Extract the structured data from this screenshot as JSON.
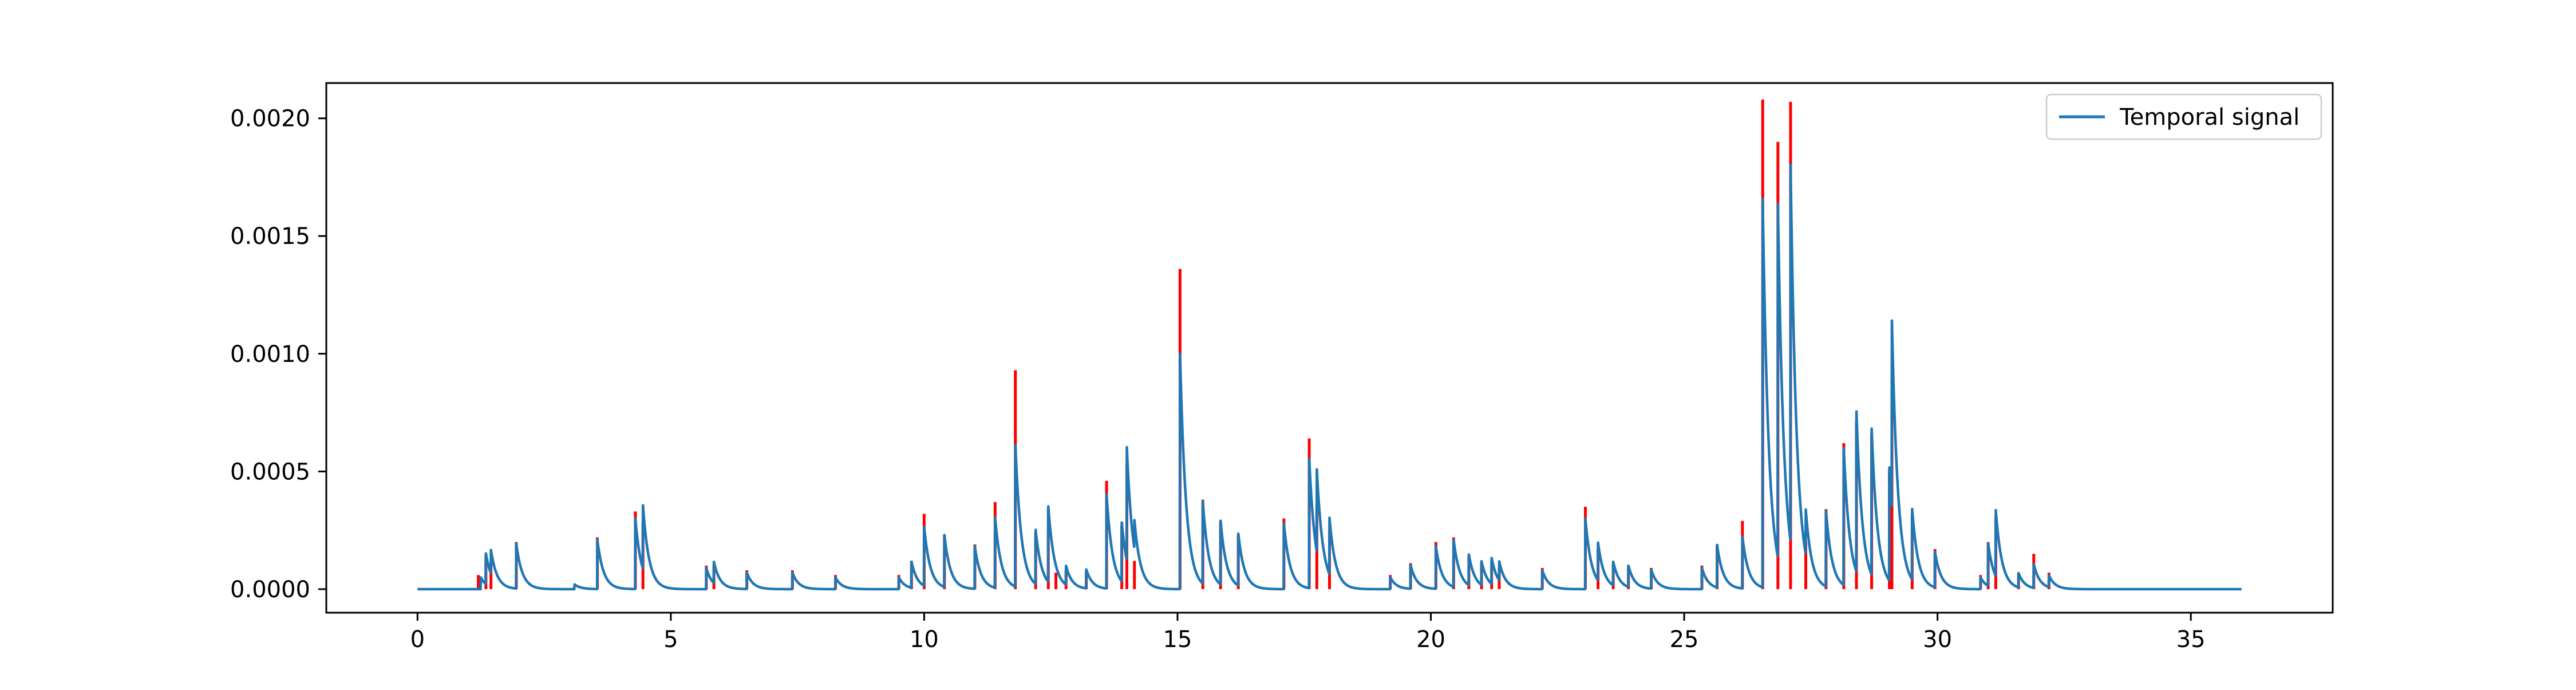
{
  "chart_data": {
    "type": "line",
    "title": "",
    "xlabel": "",
    "ylabel": "",
    "xlim": [
      -1.8,
      37.8
    ],
    "ylim": [
      -0.0001,
      0.00215
    ],
    "xticks": [
      0,
      5,
      10,
      15,
      20,
      25,
      30,
      35
    ],
    "xtick_labels": [
      "0",
      "5",
      "10",
      "15",
      "20",
      "25",
      "30",
      "35"
    ],
    "yticks": [
      0.0,
      0.0005,
      0.001,
      0.0015,
      0.002
    ],
    "ytick_labels": [
      "0.0000",
      "0.0005",
      "0.0010",
      "0.0015",
      "0.0020"
    ],
    "grid": false,
    "legend": {
      "position": "top-right",
      "entries": [
        "Temporal signal"
      ]
    },
    "x_range": [
      0,
      36
    ],
    "colors": {
      "signal": "#1f77b4",
      "impulses": "#ff0000"
    },
    "series": [
      {
        "name": "Temporal signal",
        "kind": "line",
        "baseline": 0.0,
        "decay_time": 0.12,
        "events": [
          {
            "t": 1.25,
            "a": 5e-05
          },
          {
            "t": 1.35,
            "a": 0.00013
          },
          {
            "t": 1.45,
            "a": 0.0001
          },
          {
            "t": 1.95,
            "a": 0.00019
          },
          {
            "t": 3.1,
            "a": 2e-05
          },
          {
            "t": 3.55,
            "a": 0.00021
          },
          {
            "t": 4.3,
            "a": 0.0003
          },
          {
            "t": 4.45,
            "a": 0.00027
          },
          {
            "t": 5.7,
            "a": 9e-05
          },
          {
            "t": 5.85,
            "a": 9e-05
          },
          {
            "t": 6.5,
            "a": 7e-05
          },
          {
            "t": 7.4,
            "a": 7e-05
          },
          {
            "t": 8.25,
            "a": 5e-05
          },
          {
            "t": 9.5,
            "a": 5e-05
          },
          {
            "t": 9.75,
            "a": 0.00011
          },
          {
            "t": 10.0,
            "a": 0.00025
          },
          {
            "t": 10.4,
            "a": 0.00022
          },
          {
            "t": 11.0,
            "a": 0.00018
          },
          {
            "t": 11.4,
            "a": 0.0003
          },
          {
            "t": 11.8,
            "a": 0.0006
          },
          {
            "t": 12.2,
            "a": 0.00023
          },
          {
            "t": 12.45,
            "a": 0.00032
          },
          {
            "t": 12.8,
            "a": 8e-05
          },
          {
            "t": 13.2,
            "a": 8e-05
          },
          {
            "t": 13.6,
            "a": 0.0004
          },
          {
            "t": 13.9,
            "a": 0.00025
          },
          {
            "t": 14.0,
            "a": 0.00048
          },
          {
            "t": 14.15,
            "a": 0.00012
          },
          {
            "t": 15.05,
            "a": 0.001
          },
          {
            "t": 15.5,
            "a": 0.00035
          },
          {
            "t": 15.85,
            "a": 0.00027
          },
          {
            "t": 16.2,
            "a": 0.00022
          },
          {
            "t": 17.1,
            "a": 0.00028
          },
          {
            "t": 17.6,
            "a": 0.00055
          },
          {
            "t": 17.75,
            "a": 0.00035
          },
          {
            "t": 18.0,
            "a": 0.00024
          },
          {
            "t": 19.2,
            "a": 5e-05
          },
          {
            "t": 19.6,
            "a": 0.0001
          },
          {
            "t": 20.1,
            "a": 0.00018
          },
          {
            "t": 20.45,
            "a": 0.0002
          },
          {
            "t": 20.75,
            "a": 0.00013
          },
          {
            "t": 21.0,
            "a": 0.0001
          },
          {
            "t": 21.2,
            "a": 0.00011
          },
          {
            "t": 21.35,
            "a": 8e-05
          },
          {
            "t": 22.2,
            "a": 8e-05
          },
          {
            "t": 23.05,
            "a": 0.0003
          },
          {
            "t": 23.3,
            "a": 0.00016
          },
          {
            "t": 23.6,
            "a": 0.0001
          },
          {
            "t": 23.9,
            "a": 9e-05
          },
          {
            "t": 24.35,
            "a": 8e-05
          },
          {
            "t": 25.35,
            "a": 9e-05
          },
          {
            "t": 25.65,
            "a": 0.00018
          },
          {
            "t": 26.15,
            "a": 0.00022
          },
          {
            "t": 26.55,
            "a": 0.00165
          },
          {
            "t": 26.85,
            "a": 0.0015
          },
          {
            "t": 27.1,
            "a": 0.0016
          },
          {
            "t": 27.4,
            "a": 0.00019
          },
          {
            "t": 27.8,
            "a": 0.00032
          },
          {
            "t": 28.15,
            "a": 0.00058
          },
          {
            "t": 28.4,
            "a": 0.00068
          },
          {
            "t": 28.7,
            "a": 0.00062
          },
          {
            "t": 29.05,
            "a": 0.00048
          },
          {
            "t": 29.1,
            "a": 0.0008
          },
          {
            "t": 29.5,
            "a": 0.0003
          },
          {
            "t": 29.95,
            "a": 0.00015
          },
          {
            "t": 30.85,
            "a": 5e-05
          },
          {
            "t": 31.0,
            "a": 0.00018
          },
          {
            "t": 31.15,
            "a": 0.00028
          },
          {
            "t": 31.6,
            "a": 6e-05
          },
          {
            "t": 31.9,
            "a": 0.0001
          },
          {
            "t": 32.2,
            "a": 5e-05
          }
        ]
      },
      {
        "name": "",
        "kind": "impulses",
        "values": [
          {
            "x": 1.2,
            "y": 6e-05
          },
          {
            "x": 1.35,
            "y": 0.00014
          },
          {
            "x": 1.45,
            "y": 0.00011
          },
          {
            "x": 1.95,
            "y": 0.0002
          },
          {
            "x": 3.55,
            "y": 0.00022
          },
          {
            "x": 4.3,
            "y": 0.00033
          },
          {
            "x": 4.45,
            "y": 0.00028
          },
          {
            "x": 5.7,
            "y": 0.0001
          },
          {
            "x": 5.85,
            "y": 0.0001
          },
          {
            "x": 6.5,
            "y": 8e-05
          },
          {
            "x": 7.4,
            "y": 8e-05
          },
          {
            "x": 8.25,
            "y": 6e-05
          },
          {
            "x": 9.5,
            "y": 6e-05
          },
          {
            "x": 9.75,
            "y": 0.00012
          },
          {
            "x": 10.0,
            "y": 0.00032
          },
          {
            "x": 10.4,
            "y": 0.00023
          },
          {
            "x": 11.0,
            "y": 0.00019
          },
          {
            "x": 11.4,
            "y": 0.00037
          },
          {
            "x": 11.8,
            "y": 0.00093
          },
          {
            "x": 12.2,
            "y": 0.00024
          },
          {
            "x": 12.45,
            "y": 0.00034
          },
          {
            "x": 12.6,
            "y": 7e-05
          },
          {
            "x": 12.8,
            "y": 8e-05
          },
          {
            "x": 13.2,
            "y": 8e-05
          },
          {
            "x": 13.6,
            "y": 0.00046
          },
          {
            "x": 13.9,
            "y": 0.00027
          },
          {
            "x": 14.0,
            "y": 0.00053
          },
          {
            "x": 14.15,
            "y": 0.00012
          },
          {
            "x": 15.05,
            "y": 0.00136
          },
          {
            "x": 15.5,
            "y": 0.00038
          },
          {
            "x": 15.85,
            "y": 0.00029
          },
          {
            "x": 16.2,
            "y": 0.00023
          },
          {
            "x": 17.1,
            "y": 0.0003
          },
          {
            "x": 17.6,
            "y": 0.00064
          },
          {
            "x": 17.75,
            "y": 0.00036
          },
          {
            "x": 18.0,
            "y": 0.00025
          },
          {
            "x": 19.2,
            "y": 6e-05
          },
          {
            "x": 19.6,
            "y": 0.00011
          },
          {
            "x": 20.1,
            "y": 0.0002
          },
          {
            "x": 20.45,
            "y": 0.00022
          },
          {
            "x": 20.75,
            "y": 0.00014
          },
          {
            "x": 21.0,
            "y": 0.00011
          },
          {
            "x": 21.2,
            "y": 0.00012
          },
          {
            "x": 21.35,
            "y": 9e-05
          },
          {
            "x": 22.2,
            "y": 9e-05
          },
          {
            "x": 23.05,
            "y": 0.00035
          },
          {
            "x": 23.3,
            "y": 0.00017
          },
          {
            "x": 23.6,
            "y": 0.00011
          },
          {
            "x": 23.9,
            "y": 0.0001
          },
          {
            "x": 24.35,
            "y": 9e-05
          },
          {
            "x": 25.35,
            "y": 0.0001
          },
          {
            "x": 25.65,
            "y": 0.00019
          },
          {
            "x": 26.15,
            "y": 0.00029
          },
          {
            "x": 26.55,
            "y": 0.00208
          },
          {
            "x": 26.85,
            "y": 0.0019
          },
          {
            "x": 27.1,
            "y": 0.00207
          },
          {
            "x": 27.4,
            "y": 0.0002
          },
          {
            "x": 27.8,
            "y": 0.00034
          },
          {
            "x": 28.15,
            "y": 0.00062
          },
          {
            "x": 28.4,
            "y": 0.00071
          },
          {
            "x": 28.7,
            "y": 0.00066
          },
          {
            "x": 29.05,
            "y": 0.0005
          },
          {
            "x": 29.1,
            "y": 0.00084
          },
          {
            "x": 29.5,
            "y": 0.00032
          },
          {
            "x": 29.95,
            "y": 0.00017
          },
          {
            "x": 30.85,
            "y": 6e-05
          },
          {
            "x": 31.0,
            "y": 0.0002
          },
          {
            "x": 31.15,
            "y": 0.00031
          },
          {
            "x": 31.6,
            "y": 7e-05
          },
          {
            "x": 31.9,
            "y": 0.00015
          },
          {
            "x": 32.2,
            "y": 7e-05
          }
        ]
      }
    ]
  }
}
